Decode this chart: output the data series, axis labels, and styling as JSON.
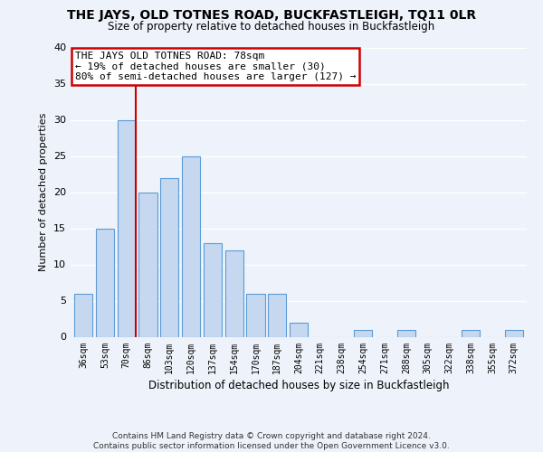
{
  "title": "THE JAYS, OLD TOTNES ROAD, BUCKFASTLEIGH, TQ11 0LR",
  "subtitle": "Size of property relative to detached houses in Buckfastleigh",
  "xlabel": "Distribution of detached houses by size in Buckfastleigh",
  "ylabel": "Number of detached properties",
  "bar_labels": [
    "36sqm",
    "53sqm",
    "70sqm",
    "86sqm",
    "103sqm",
    "120sqm",
    "137sqm",
    "154sqm",
    "170sqm",
    "187sqm",
    "204sqm",
    "221sqm",
    "238sqm",
    "254sqm",
    "271sqm",
    "288sqm",
    "305sqm",
    "322sqm",
    "338sqm",
    "355sqm",
    "372sqm"
  ],
  "bar_values": [
    6,
    15,
    30,
    20,
    22,
    25,
    13,
    12,
    6,
    6,
    2,
    0,
    0,
    1,
    0,
    1,
    0,
    0,
    1,
    0,
    1
  ],
  "bar_color": "#c5d8f0",
  "bar_edge_color": "#5b9bd5",
  "property_label": "THE JAYS OLD TOTNES ROAD: 78sqm",
  "annotation_line1": "← 19% of detached houses are smaller (30)",
  "annotation_line2": "80% of semi-detached houses are larger (127) →",
  "annotation_box_color": "#ffffff",
  "annotation_box_edge": "#cc0000",
  "line_color": "#cc0000",
  "line_x_index": 2,
  "ylim": [
    0,
    40
  ],
  "yticks": [
    0,
    5,
    10,
    15,
    20,
    25,
    30,
    35,
    40
  ],
  "footer_line1": "Contains HM Land Registry data © Crown copyright and database right 2024.",
  "footer_line2": "Contains public sector information licensed under the Open Government Licence v3.0.",
  "bg_color": "#eef2fa",
  "grid_color": "#ffffff"
}
